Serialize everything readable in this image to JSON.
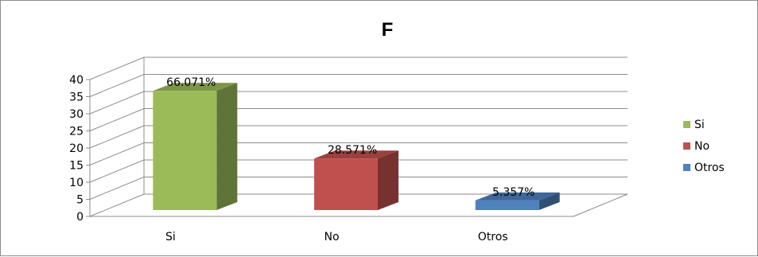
{
  "chart_data": {
    "type": "bar",
    "title": "F",
    "categories": [
      "Si",
      "No",
      "Otros"
    ],
    "values": [
      37,
      16,
      3
    ],
    "data_labels": [
      "66.071%",
      "28.571%",
      "5.357%"
    ],
    "colors": [
      "#9bbb59",
      "#c0504d",
      "#4f81bd"
    ],
    "ylim": [
      0,
      40
    ],
    "yticks": [
      "0",
      "5",
      "10",
      "15",
      "20",
      "25",
      "30",
      "35",
      "40"
    ],
    "grid": true,
    "three_d": true,
    "legend": {
      "position": "right",
      "entries": [
        "Si",
        "No",
        "Otros"
      ]
    }
  }
}
